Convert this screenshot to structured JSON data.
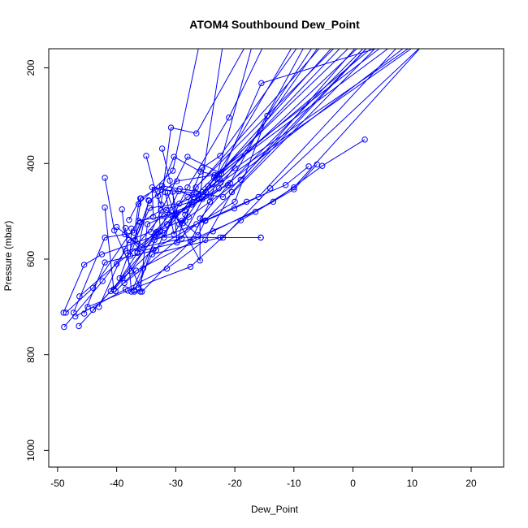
{
  "chart_data": {
    "type": "line",
    "title": "ATOM4 Southbound Dew_Point",
    "xlabel": "Dew_Point",
    "ylabel": "Pressure (mbar)",
    "xlim": [
      -51.5,
      25.5
    ],
    "ylim": [
      1035,
      160
    ],
    "y_inverted": true,
    "x_ticks": [
      -50,
      -40,
      -30,
      -20,
      -10,
      0,
      10,
      20
    ],
    "y_ticks": [
      200,
      400,
      600,
      800,
      1000
    ],
    "grid": false,
    "legend": "none",
    "series_color": "#0000ff",
    "series": [
      {
        "x": [
          -46.4,
          -39.0,
          -33.8,
          -20.0,
          -14.5,
          -6.5
        ],
        "y": [
          740,
          640,
          580,
          480,
          300,
          150
        ]
      },
      {
        "x": [
          -47.3,
          -42.0,
          -37.0,
          -36.3,
          -30.5,
          -26.0
        ],
        "y": [
          712,
          555,
          545,
          485,
          415,
          150
        ]
      },
      {
        "x": [
          -48.6,
          -44.0,
          -36.3,
          -32.0,
          -28.0,
          -5.0
        ],
        "y": [
          712,
          660,
          520,
          510,
          470,
          150
        ]
      },
      {
        "x": [
          -49.0,
          -45.5,
          -42.5,
          -32.0,
          -27.0,
          0.0
        ],
        "y": [
          712,
          612,
          590,
          545,
          470,
          150
        ]
      },
      {
        "x": [
          -48.9,
          -42.4,
          -38.5,
          -29.0,
          -23.5,
          7.0
        ],
        "y": [
          742,
          646,
          583,
          557,
          430,
          150
        ]
      },
      {
        "x": [
          -47.0,
          -38.5,
          -31.5,
          -25.0,
          -20.5,
          3.0
        ],
        "y": [
          720,
          663,
          620,
          560,
          460,
          150
        ]
      },
      {
        "x": [
          -44.0,
          -41.0,
          -33.5,
          -22.0,
          -14.0,
          12.0
        ],
        "y": [
          706,
          667,
          554,
          555,
          452,
          150
        ]
      },
      {
        "x": [
          -42.0,
          -40.4,
          -35.7,
          -27.5,
          -24.2,
          -17.0
        ],
        "y": [
          430,
          540,
          668,
          563,
          480,
          150
        ]
      },
      {
        "x": [
          -42.0,
          -40.5,
          -36.5,
          -30.2,
          -21.2,
          2.5
        ],
        "y": [
          492,
          663,
          587,
          508,
          445,
          150
        ]
      },
      {
        "x": [
          -40.5,
          -37.7,
          -33.2,
          -27.8,
          -19.0,
          1.0
        ],
        "y": [
          664,
          625,
          543,
          512,
          434,
          150
        ]
      },
      {
        "x": [
          -40.0,
          -36.4,
          -31.6,
          -28.8,
          -24.5,
          -1.5
        ],
        "y": [
          533,
          568,
          497,
          525,
          447,
          150
        ]
      },
      {
        "x": [
          -39.1,
          -38.6,
          -35.8,
          -31.0,
          -24.1,
          9.5
        ],
        "y": [
          496,
          548,
          575,
          507,
          469,
          150
        ]
      },
      {
        "x": [
          -38.5,
          -37.5,
          -33.0,
          -29.5,
          -26.0,
          -22.0
        ],
        "y": [
          535,
          668,
          546,
          458,
          473,
          150
        ]
      },
      {
        "x": [
          -37.9,
          -36.0,
          -32.3,
          -29.3,
          -25.5,
          -3.0
        ],
        "y": [
          518,
          473,
          447,
          453,
          460,
          150
        ]
      },
      {
        "x": [
          -37.5,
          -37.7,
          -34.5,
          -29.8,
          -23.4,
          5.5
        ],
        "y": [
          536,
          593,
          478,
          437,
          424,
          150
        ]
      },
      {
        "x": [
          -37.0,
          -36.0,
          -34.8,
          -27.3,
          -22.7,
          -5.5
        ],
        "y": [
          668,
          668,
          527,
          486,
          452,
          150
        ]
      },
      {
        "x": [
          -37.0,
          -34.0,
          -22.5,
          -15.6,
          -15.6
        ],
        "y": [
          665,
          590,
          555,
          555,
          555
        ]
      },
      {
        "x": [
          -35.9,
          -36.9,
          -34.4,
          -29.4,
          -22.4,
          11.0
        ],
        "y": [
          473,
          560,
          493,
          484,
          440,
          150
        ]
      },
      {
        "x": [
          -35.0,
          -33.5,
          -32.5,
          -30.8,
          -26.5,
          -18.0
        ],
        "y": [
          384,
          455,
          486,
          325,
          337,
          150
        ]
      },
      {
        "x": [
          -34.6,
          -36.5,
          -27.0,
          -16.5,
          -10.0,
          12.0
        ],
        "y": [
          477,
          585,
          558,
          501,
          450,
          150
        ]
      },
      {
        "x": [
          -33.8,
          -34.0,
          -32.4,
          -26.5,
          -22.0,
          3.0
        ],
        "y": [
          512,
          450,
          455,
          462,
          470,
          150
        ]
      },
      {
        "x": [
          -32.6,
          -33.0,
          -30.3,
          -25.8,
          -23.0,
          -10.0
        ],
        "y": [
          541,
          468,
          386,
          417,
          425,
          150
        ]
      },
      {
        "x": [
          -32.0,
          -30.0,
          -28.5,
          -25.5,
          -22.5,
          -9.0
        ],
        "y": [
          555,
          503,
          498,
          409,
          384,
          150
        ]
      },
      {
        "x": [
          -32.3,
          -31.0,
          -29.4,
          -28.4,
          -26.6,
          -2.5
        ],
        "y": [
          369,
          436,
          527,
          520,
          450,
          150
        ]
      },
      {
        "x": [
          -31.8,
          -30.3,
          -29.0,
          -26.2,
          -25.0,
          4.5
        ],
        "y": [
          460,
          548,
          520,
          550,
          519,
          150
        ]
      },
      {
        "x": [
          -31.4,
          -30.2,
          -25.9,
          -25.9,
          -20.8,
          -8.0
        ],
        "y": [
          461,
          507,
          603,
          515,
          441,
          150
        ]
      },
      {
        "x": [
          -30.5,
          -29.8,
          -28.4,
          -27.2,
          -24.9,
          1.5
        ],
        "y": [
          459,
          565,
          507,
          482,
          460,
          150
        ]
      },
      {
        "x": [
          -36.3,
          -33.6,
          -25.0,
          -20.1,
          -16.0,
          8.0
        ],
        "y": [
          660,
          560,
          520,
          494,
          470,
          150
        ]
      },
      {
        "x": [
          -38.7,
          -35.5,
          -26.5,
          -18.0,
          -11.4,
          -7.5
        ],
        "y": [
          650,
          619,
          527,
          480,
          445,
          406
        ]
      },
      {
        "x": [
          -44.9,
          -38.1,
          -27.5,
          -19.0,
          -10.0,
          -6.1
        ],
        "y": [
          700,
          666,
          616,
          519,
          454,
          402
        ]
      },
      {
        "x": [
          -40.2,
          -36.7,
          -23.7,
          -13.5,
          -5.2,
          2.0
        ],
        "y": [
          667,
          624,
          542,
          480,
          405,
          350
        ]
      },
      {
        "x": [
          -46.3,
          -40.0,
          -31.5,
          -22.6,
          -15.5,
          6.5
        ],
        "y": [
          678,
          610,
          527,
          432,
          232,
          150
        ]
      },
      {
        "x": [
          -45.5,
          -42.0,
          -33.3,
          -28.0,
          -21.0,
          -15.0
        ],
        "y": [
          714,
          607,
          581,
          450,
          304,
          150
        ]
      },
      {
        "x": [
          -43.0,
          -37.9,
          -34.2,
          -28.0,
          -22.3,
          4.0
        ],
        "y": [
          700,
          560,
          543,
          386,
          421,
          150
        ]
      },
      {
        "x": [
          -39.5,
          -36.0,
          -32.5,
          -25.5,
          -20.0,
          10.5
        ],
        "y": [
          640,
          523,
          498,
          474,
          410,
          150
        ]
      }
    ]
  }
}
